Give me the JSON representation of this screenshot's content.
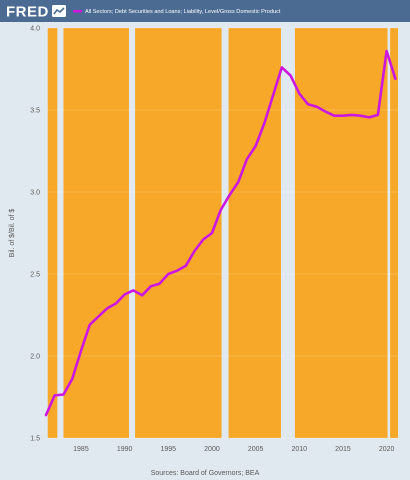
{
  "header": {
    "logo_text": "FRED",
    "logo_icon": "line-graph-icon",
    "bar_color": "#4b6b92"
  },
  "chart_data": {
    "type": "line",
    "title": "",
    "legend": [
      {
        "label": "All Sectors; Debt Securities and Loans; Liability, Level/Gross Domestic Product",
        "color": "#cc17e0",
        "placement": "top"
      }
    ],
    "xlabel": "",
    "ylabel": "Bil. of $/Bil. of $",
    "source": "Sources: Board of Governors; BEA",
    "xlim": [
      1981,
      2021.3
    ],
    "ylim": [
      1.5,
      4.0
    ],
    "x_ticks": [
      "1985",
      "1990",
      "1995",
      "2000",
      "2005",
      "2010",
      "2015",
      "2020"
    ],
    "y_ticks": [
      "1.5",
      "2.0",
      "2.5",
      "3.0",
      "3.5",
      "4.0"
    ],
    "grid": true,
    "background_fill_color": "#f7a828",
    "gap_color": "#e1e9f0",
    "gaps": [
      [
        1981.0,
        1981.2
      ],
      [
        1982.3,
        1983.0
      ],
      [
        1990.5,
        1991.2
      ],
      [
        2001.1,
        2001.9
      ],
      [
        2007.9,
        2009.5
      ],
      [
        2020.1,
        2020.4
      ]
    ],
    "series": [
      {
        "name": "All Sectors; Debt Securities and Loans; Liability, Level/Gross Domestic Product",
        "color": "#cc17e0",
        "x": [
          1981,
          1982,
          1983,
          1984,
          1985,
          1986,
          1987,
          1988,
          1989,
          1990,
          1991,
          1992,
          1993,
          1994,
          1995,
          1996,
          1997,
          1998,
          1999,
          2000,
          2001,
          2002,
          2003,
          2004,
          2005,
          2006,
          2007,
          2008,
          2009,
          2010,
          2011,
          2012,
          2013,
          2014,
          2015,
          2016,
          2017,
          2018,
          2019,
          2020,
          2021
        ],
        "y": [
          1.64,
          1.76,
          1.765,
          1.86,
          2.03,
          2.19,
          2.24,
          2.29,
          2.32,
          2.375,
          2.4,
          2.37,
          2.425,
          2.44,
          2.5,
          2.52,
          2.55,
          2.64,
          2.71,
          2.75,
          2.89,
          2.98,
          3.06,
          3.2,
          3.28,
          3.42,
          3.59,
          3.76,
          3.71,
          3.6,
          3.535,
          3.52,
          3.49,
          3.465,
          3.465,
          3.47,
          3.465,
          3.455,
          3.47,
          3.86,
          3.69
        ]
      }
    ]
  }
}
